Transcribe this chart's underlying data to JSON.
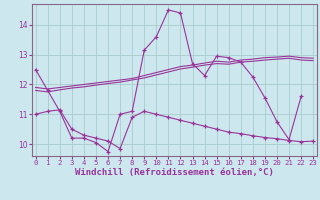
{
  "xlabel": "Windchill (Refroidissement éolien,°C)",
  "bg_color": "#cce8ee",
  "grid_color": "#aacccc",
  "line_color": "#993399",
  "spine_color": "#886688",
  "x_ticks": [
    0,
    1,
    2,
    3,
    4,
    5,
    6,
    7,
    8,
    9,
    10,
    11,
    12,
    13,
    14,
    15,
    16,
    17,
    18,
    19,
    20,
    21,
    22,
    23
  ],
  "y_ticks": [
    10,
    11,
    12,
    13,
    14
  ],
  "xlim": [
    -0.3,
    23.3
  ],
  "ylim": [
    9.6,
    14.7
  ],
  "lines": [
    {
      "x": [
        0,
        1,
        2,
        3,
        4,
        5,
        6,
        7,
        8,
        9,
        10,
        11,
        12,
        13,
        14,
        15,
        16,
        17,
        18,
        19,
        20,
        21,
        22
      ],
      "y": [
        12.5,
        11.8,
        11.1,
        10.2,
        10.2,
        10.05,
        9.75,
        11.0,
        11.1,
        13.15,
        13.6,
        14.5,
        14.4,
        12.7,
        12.3,
        12.95,
        12.9,
        12.75,
        12.25,
        11.55,
        10.75,
        10.15,
        11.6
      ],
      "marker": true
    },
    {
      "x": [
        0,
        1,
        2,
        3,
        4,
        5,
        6,
        7,
        8,
        9,
        10,
        11,
        12,
        13,
        14,
        15,
        16,
        17,
        18,
        19,
        20,
        21,
        22,
        23
      ],
      "y": [
        11.9,
        11.85,
        11.9,
        11.95,
        12.0,
        12.05,
        12.1,
        12.15,
        12.2,
        12.3,
        12.4,
        12.5,
        12.6,
        12.65,
        12.72,
        12.78,
        12.75,
        12.82,
        12.85,
        12.9,
        12.92,
        12.95,
        12.9,
        12.88
      ],
      "marker": false
    },
    {
      "x": [
        0,
        1,
        2,
        3,
        4,
        5,
        6,
        7,
        8,
        9,
        10,
        11,
        12,
        13,
        14,
        15,
        16,
        17,
        18,
        19,
        20,
        21,
        22,
        23
      ],
      "y": [
        11.8,
        11.75,
        11.82,
        11.88,
        11.92,
        11.98,
        12.03,
        12.08,
        12.15,
        12.22,
        12.32,
        12.42,
        12.52,
        12.58,
        12.65,
        12.7,
        12.68,
        12.75,
        12.78,
        12.82,
        12.85,
        12.88,
        12.82,
        12.8
      ],
      "marker": false
    },
    {
      "x": [
        0,
        1,
        2,
        3,
        4,
        5,
        6,
        7,
        8,
        9,
        10,
        11,
        12,
        13,
        14,
        15,
        16,
        17,
        18,
        19,
        20,
        21,
        22,
        23
      ],
      "y": [
        11.0,
        11.1,
        11.15,
        10.5,
        10.3,
        10.2,
        10.1,
        9.85,
        10.9,
        11.1,
        11.0,
        10.9,
        10.8,
        10.7,
        10.6,
        10.5,
        10.4,
        10.35,
        10.28,
        10.22,
        10.18,
        10.12,
        10.08,
        10.1
      ],
      "marker": true
    }
  ]
}
